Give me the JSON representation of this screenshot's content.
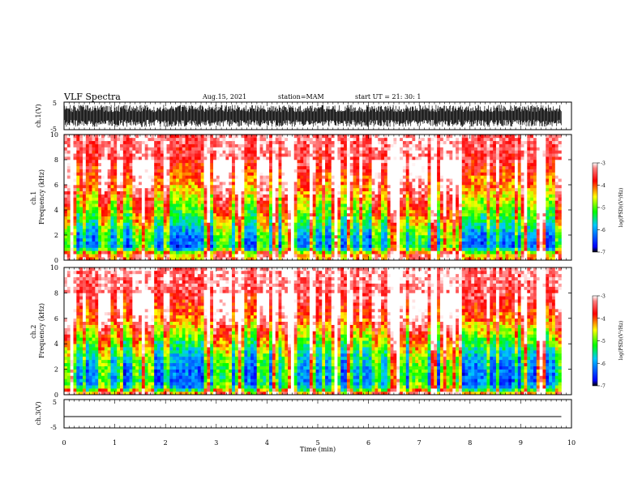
{
  "header": {
    "title": "VLF Spectra",
    "date": "Aug.15, 2021",
    "station": "station=MAM",
    "start": "start  UT =   21: 30: 1"
  },
  "chart_data": [
    {
      "type": "line",
      "panel": "ch1-waveform",
      "ylabel": "ch.1(V)",
      "ylim": [
        -5,
        5
      ],
      "yticks": [
        5,
        -5
      ],
      "xlim": [
        0,
        10
      ],
      "description_of_values": "dense broadband noise spanning approx -4 to +4 V",
      "values": [
        -4.0,
        4.0
      ],
      "x": [
        0,
        9.8
      ]
    },
    {
      "type": "heatmap",
      "panel": "ch1-spectrogram",
      "ylabel": "ch.1\nFrequency (kHz)",
      "ylim": [
        0,
        10
      ],
      "yticks": [
        0,
        2,
        4,
        6,
        8,
        10
      ],
      "xlim": [
        0,
        10
      ],
      "data_end_min": 9.8,
      "colorbar": {
        "label": "log(PSD)(V²/Hz)",
        "ticks": [
          -3,
          -4,
          -5,
          -6,
          -7
        ],
        "range": [
          -7,
          -3
        ]
      },
      "profile": [
        {
          "freq_khz": 0.0,
          "logpsd": -4.2
        },
        {
          "freq_khz": 0.5,
          "logpsd": -4.5
        },
        {
          "freq_khz": 1.0,
          "logpsd": -6.3
        },
        {
          "freq_khz": 2.0,
          "logpsd": -6.1
        },
        {
          "freq_khz": 3.0,
          "logpsd": -5.5
        },
        {
          "freq_khz": 4.0,
          "logpsd": -5.0
        },
        {
          "freq_khz": 5.0,
          "logpsd": -4.6
        },
        {
          "freq_khz": 6.0,
          "logpsd": -4.2
        },
        {
          "freq_khz": 7.0,
          "logpsd": -3.9
        },
        {
          "freq_khz": 8.0,
          "logpsd": -3.6
        },
        {
          "freq_khz": 10.0,
          "logpsd": -3.4
        }
      ]
    },
    {
      "type": "heatmap",
      "panel": "ch2-spectrogram",
      "ylabel": "ch.2\nFrequency (kHz)",
      "ylim": [
        0,
        10
      ],
      "yticks": [
        0,
        2,
        4,
        6,
        8,
        10
      ],
      "xlim": [
        0,
        10
      ],
      "data_end_min": 9.8,
      "colorbar": {
        "label": "log(PSD)(V²/Hz)",
        "ticks": [
          -3,
          -4,
          -5,
          -6,
          -7
        ],
        "range": [
          -7,
          -3
        ]
      },
      "profile": [
        {
          "freq_khz": 0.0,
          "logpsd": -4.0
        },
        {
          "freq_khz": 0.5,
          "logpsd": -5.8
        },
        {
          "freq_khz": 1.0,
          "logpsd": -6.3
        },
        {
          "freq_khz": 2.0,
          "logpsd": -6.2
        },
        {
          "freq_khz": 3.0,
          "logpsd": -5.9
        },
        {
          "freq_khz": 4.0,
          "logpsd": -5.3
        },
        {
          "freq_khz": 5.0,
          "logpsd": -4.7
        },
        {
          "freq_khz": 6.0,
          "logpsd": -4.1
        },
        {
          "freq_khz": 7.0,
          "logpsd": -3.8
        },
        {
          "freq_khz": 8.0,
          "logpsd": -3.5
        },
        {
          "freq_khz": 10.0,
          "logpsd": -3.3
        }
      ]
    },
    {
      "type": "line",
      "panel": "ch3-waveform",
      "ylabel": "ch.3(V)",
      "ylim": [
        -5,
        5
      ],
      "yticks": [
        5,
        -5
      ],
      "xlim": [
        0,
        10
      ],
      "x": [
        0,
        9.8
      ],
      "values": [
        -1.0,
        -1.0
      ]
    }
  ],
  "x_axis": {
    "label": "Time  (min)",
    "ticks": [
      "0",
      "1",
      "2",
      "3",
      "4",
      "5",
      "6",
      "7",
      "8",
      "9",
      "10"
    ]
  },
  "colors": {
    "frame": "#000000",
    "colormap": [
      "#000000",
      "#0000ff",
      "#00c8ff",
      "#00ff00",
      "#ffff00",
      "#ff0000",
      "#ffffff"
    ]
  }
}
